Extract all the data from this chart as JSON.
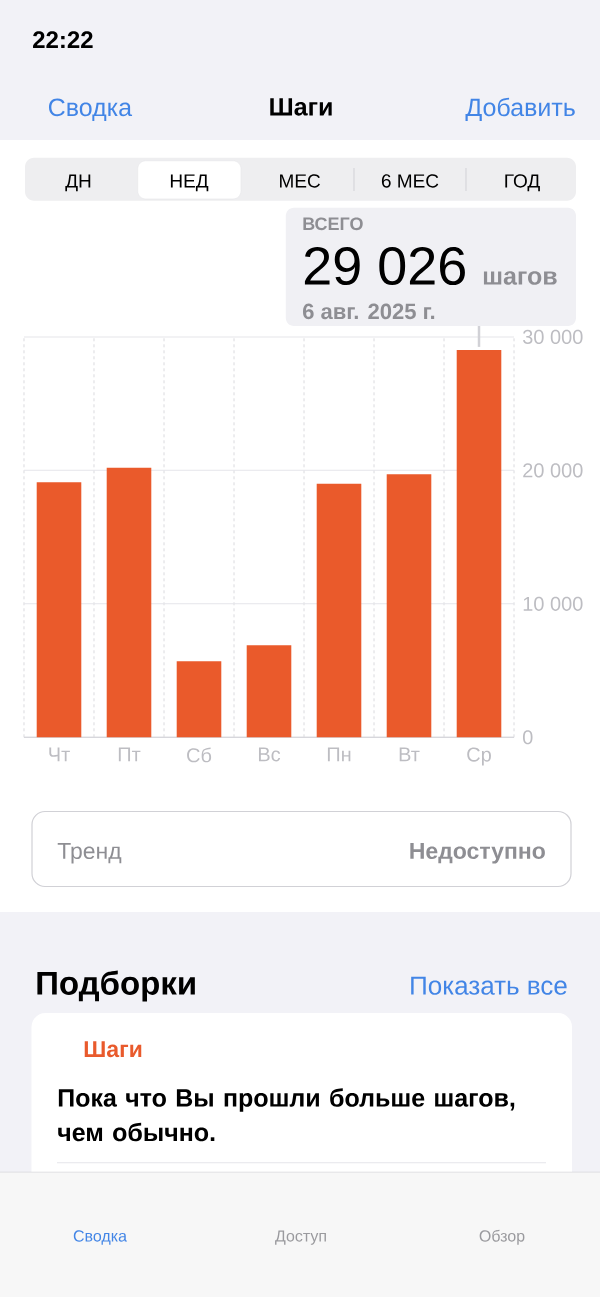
{
  "chart_data": {
    "type": "bar",
    "title": "Шаги",
    "categories": [
      "Чт",
      "Пт",
      "Сб",
      "Вс",
      "Пн",
      "Вт",
      "Ср"
    ],
    "values": [
      19100,
      20200,
      5700,
      6900,
      19000,
      19700,
      29026
    ],
    "color": "#ea5a2b",
    "ylim": [
      0,
      30000
    ],
    "yticks": [
      0,
      {
        "value": 10000,
        "label": "10 000"
      },
      {
        "value": 20000,
        "label": "20 000"
      },
      {
        "value": 30000,
        "label": "30 000"
      }
    ],
    "grid": true,
    "value_labels": [
      null,
      null,
      null,
      null,
      null,
      null,
      "29 026"
    ],
    "annotations": [
      "22:22",
      "Сводка",
      "Добавить",
      "ДН",
      "НЕД",
      "МЕС",
      "6 МЕС",
      "ГОД",
      "ВСЕГО",
      "шагов",
      "6 авг. 2025 г.",
      "Тренд",
      "Недоступно",
      "Подборки",
      "Показать все",
      "Шаги",
      "Пока что Вы прошли больше шагов, чем обычно.",
      "Сводка",
      "Доступ",
      "Обзор"
    ]
  }
}
